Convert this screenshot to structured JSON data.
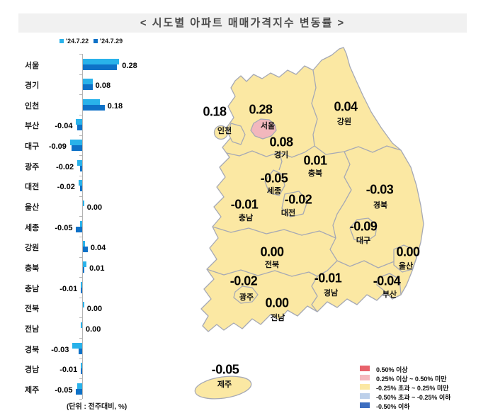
{
  "title": "< 시도별 아파트 매매가격지수 변동률 >",
  "chart_data": {
    "type": "bar",
    "orientation": "horizontal",
    "title": "< 시도별 아파트 매매가격지수 변동률 >",
    "unit_note": "(단위 : 전주대비, %)",
    "categories": [
      "서울",
      "경기",
      "인천",
      "부산",
      "대구",
      "광주",
      "대전",
      "울산",
      "세종",
      "강원",
      "충북",
      "충남",
      "전북",
      "전남",
      "경북",
      "경남",
      "제주"
    ],
    "series": [
      {
        "name": "'24.7.22",
        "color": "#29B2EA",
        "values": [
          0.3,
          0.08,
          0.14,
          -0.05,
          -0.1,
          -0.04,
          -0.03,
          0.01,
          -0.02,
          0.02,
          0.03,
          -0.01,
          0.01,
          -0.01,
          -0.08,
          -0.01,
          -0.04
        ]
      },
      {
        "name": "'24.7.29",
        "color": "#0E71C7",
        "values": [
          0.28,
          0.08,
          0.18,
          -0.04,
          -0.09,
          -0.02,
          -0.02,
          0.0,
          -0.05,
          0.04,
          0.01,
          -0.01,
          0.0,
          0.0,
          -0.03,
          -0.01,
          -0.05
        ]
      }
    ],
    "value_labels": [
      "0.28",
      "0.08",
      "0.18",
      "-0.04",
      "-0.09",
      "-0.02",
      "-0.02",
      "0.00",
      "-0.05",
      "0.04",
      "0.01",
      "-0.01",
      "0.00",
      "0.00",
      "-0.03",
      "-0.01",
      "-0.05"
    ],
    "xlim": [
      -0.15,
      0.45
    ],
    "grid": false,
    "legend_position": "top"
  },
  "map": {
    "regions": [
      {
        "name": "인천",
        "value": "0.18"
      },
      {
        "name": "서울",
        "value": "0.28"
      },
      {
        "name": "경기",
        "value": "0.08"
      },
      {
        "name": "강원",
        "value": "0.04"
      },
      {
        "name": "충북",
        "value": "0.01"
      },
      {
        "name": "세종",
        "value": "-0.05"
      },
      {
        "name": "대전",
        "value": "-0.02"
      },
      {
        "name": "충남",
        "value": "-0.01"
      },
      {
        "name": "경북",
        "value": "-0.03"
      },
      {
        "name": "대구",
        "value": "-0.09"
      },
      {
        "name": "전북",
        "value": "0.00"
      },
      {
        "name": "울산",
        "value": "0.00"
      },
      {
        "name": "광주",
        "value": "-0.02"
      },
      {
        "name": "경남",
        "value": "-0.01"
      },
      {
        "name": "부산",
        "value": "-0.04"
      },
      {
        "name": "전남",
        "value": "0.00"
      },
      {
        "name": "제주",
        "value": "-0.05"
      }
    ],
    "colors": {
      "land": "#FBE8A3",
      "seoul": "#F2B7BD",
      "border": "#A6A9B5"
    },
    "legend": [
      {
        "color": "#E8626B",
        "label": "0.50% 이상"
      },
      {
        "color": "#F5B9BE",
        "label": "0.25% 이상 ~ 0.50% 미만"
      },
      {
        "color": "#FBE8A3",
        "label": "-0.25% 초과 ~ 0.25% 미만"
      },
      {
        "color": "#BDD0EA",
        "label": "-0.50% 초과 ~ -0.25% 이하"
      },
      {
        "color": "#3D6EC0",
        "label": "-0.50% 이하"
      }
    ]
  }
}
